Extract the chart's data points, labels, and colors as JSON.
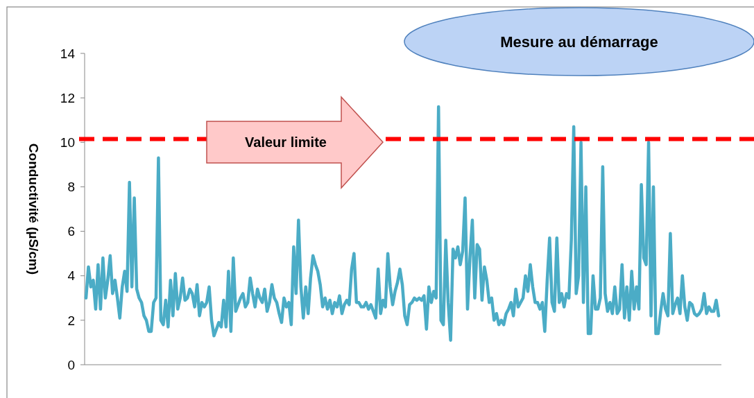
{
  "chart_data": {
    "type": "line",
    "title": "Mesure au démarrage",
    "ylabel": "Conductivité (µS/cm)",
    "ylim": [
      0,
      14
    ],
    "yticks": [
      0,
      2,
      4,
      6,
      8,
      10,
      12,
      14
    ],
    "grid": false,
    "line_style": "solid",
    "tick_labels": "y",
    "ref_lines": [
      {
        "axis": "y",
        "value": 10.15,
        "label": "Valeur limite",
        "color": "#ff0000",
        "line_style": "dashed"
      }
    ],
    "series": [
      {
        "color": "#4bacc6",
        "values": [
          3,
          4.4,
          3.5,
          3.8,
          2.5,
          4.5,
          2.5,
          4.8,
          3.0,
          3.8,
          4.9,
          3.2,
          3.8,
          3.0,
          2.1,
          3.5,
          4.2,
          3.3,
          8.2,
          3.5,
          7.5,
          3.4,
          3.0,
          2.8,
          2.2,
          2.0,
          1.5,
          1.5,
          2.8,
          3.0,
          9.3,
          2.0,
          1.8,
          2.9,
          1.7,
          3.8,
          2.2,
          4.1,
          2.5,
          3.0,
          3.9,
          2.9,
          3.0,
          3.4,
          3.2,
          2.6,
          3.6,
          2.2,
          2.8,
          2.6,
          2.8,
          3.5,
          2.0,
          1.3,
          1.6,
          1.9,
          1.7,
          2.9,
          1.7,
          4.2,
          1.5,
          4.8,
          2.4,
          2.7,
          3.0,
          3.2,
          2.6,
          2.8,
          3.9,
          3.2,
          2.6,
          3.4,
          3.0,
          2.8,
          3.4,
          2.4,
          2.8,
          3.6,
          3.0,
          2.8,
          2.3,
          1.9,
          3.0,
          2.6,
          2.8,
          1.8,
          5.3,
          3.2,
          6.5,
          3.5,
          2.1,
          3.5,
          2.3,
          3.9,
          4.9,
          4.5,
          4.2,
          3.6,
          2.6,
          3.0,
          2.5,
          2.9,
          2.3,
          2.8,
          2.6,
          3.1,
          2.3,
          2.7,
          2.9,
          2.7,
          4.3,
          5.0,
          2.8,
          2.8,
          2.6,
          2.6,
          2.8,
          2.5,
          2.7,
          2.4,
          2.1,
          4.3,
          2.3,
          2.9,
          2.6,
          5.0,
          3.5,
          2.7,
          3.3,
          3.7,
          4.3,
          3.6,
          2.2,
          1.8,
          2.7,
          2.8,
          3.0,
          2.9,
          3.0,
          2.9,
          3.1,
          1.6,
          3.5,
          2.8,
          3.3,
          3.0,
          11.6,
          2.0,
          1.8,
          5.6,
          2.8,
          1.1,
          5.2,
          4.8,
          5.3,
          4.5,
          5.1,
          7.5,
          2.5,
          4.8,
          6.5,
          3.0,
          5.4,
          5.2,
          2.9,
          4.4,
          3.8,
          2.8,
          3.0,
          2.0,
          2.3,
          1.8,
          2.0,
          1.8,
          2.3,
          2.5,
          2.8,
          2.2,
          3.4,
          2.6,
          2.8,
          3.0,
          4.0,
          3.3,
          4.5,
          3.5,
          2.8,
          2.8,
          2.5,
          2.8,
          1.5,
          3.8,
          5.7,
          2.8,
          2.4,
          5.7,
          2.8,
          3.2,
          2.6,
          3.2,
          3.0,
          5.6,
          10.7,
          3.2,
          4.0,
          10.0,
          2.8,
          8.0,
          1.4,
          1.4,
          4.0,
          2.5,
          2.5,
          3.0,
          8.9,
          3.2,
          2.4,
          2.8,
          2.3,
          3.5,
          2.3,
          2.5,
          4.5,
          2.1,
          3.5,
          2.0,
          4.2,
          2.5,
          3.5,
          2.5,
          8.1,
          4.8,
          4.5,
          10.0,
          2.2,
          8.0,
          1.4,
          1.4,
          2.4,
          3.2,
          2.5,
          2.2,
          5.9,
          2.3,
          2.7,
          3.0,
          2.3,
          4.0,
          2.6,
          2.0,
          2.8,
          2.7,
          2.3,
          2.2,
          2.3,
          2.5,
          3.2,
          2.3,
          2.6,
          2.4,
          2.4,
          2.9,
          2.2
        ]
      }
    ]
  }
}
